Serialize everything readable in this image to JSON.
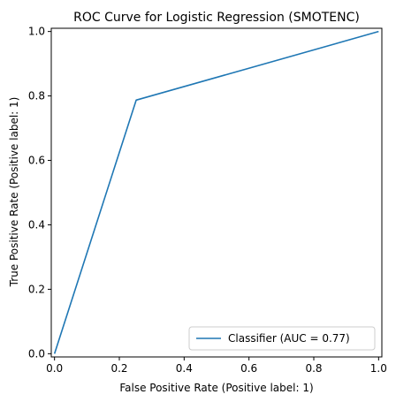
{
  "chart_data": {
    "type": "line",
    "title": "ROC Curve for Logistic Regression (SMOTENC)",
    "xlabel": "False Positive Rate (Positive label: 1)",
    "ylabel": "True Positive Rate (Positive label: 1)",
    "xlim": [
      -0.01,
      1.01
    ],
    "ylim": [
      -0.01,
      1.01
    ],
    "xticks": [
      0.0,
      0.2,
      0.4,
      0.6,
      0.8,
      1.0
    ],
    "yticks": [
      0.0,
      0.2,
      0.4,
      0.6,
      0.8,
      1.0
    ],
    "xtick_labels": [
      "0.0",
      "0.2",
      "0.4",
      "0.6",
      "0.8",
      "1.0"
    ],
    "ytick_labels": [
      "0.0",
      "0.2",
      "0.4",
      "0.6",
      "0.8",
      "1.0"
    ],
    "grid": false,
    "legend_position": "lower-right",
    "series": [
      {
        "name": "Classifier (AUC = 0.77)",
        "color": "#1f77b4",
        "x": [
          0.0,
          0.252,
          1.0
        ],
        "y": [
          0.0,
          0.787,
          1.0
        ]
      }
    ]
  }
}
